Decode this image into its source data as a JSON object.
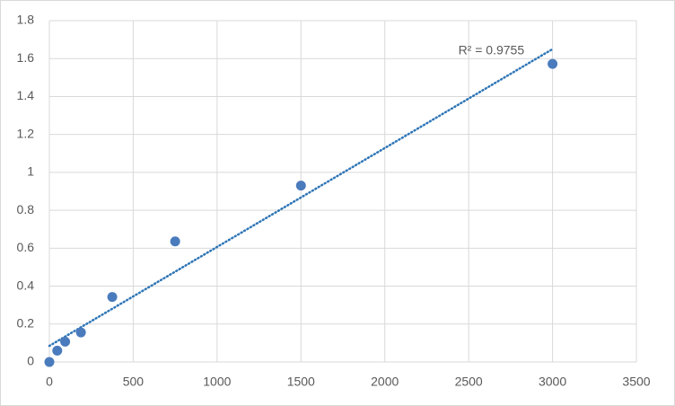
{
  "chart_data": {
    "type": "scatter",
    "series": [
      {
        "color": "#4a7bbd",
        "x": [
          0,
          47,
          94,
          188,
          375,
          750,
          1500,
          3000
        ],
        "values": [
          0,
          0.06,
          0.107,
          0.156,
          0.343,
          0.636,
          0.93,
          1.572
        ]
      }
    ],
    "trendline": {
      "x": [
        0,
        3000
      ],
      "values": [
        0.085,
        1.65
      ],
      "color": "#2e75b6",
      "label": "R² = 0.9755"
    },
    "xlim": [
      0,
      3500
    ],
    "xticks": [
      0,
      500,
      1000,
      1500,
      2000,
      2500,
      3000,
      3500
    ],
    "ylim": [
      0,
      1.8
    ],
    "yticks": [
      0,
      0.2,
      0.4,
      0.6,
      0.8,
      1,
      1.2,
      1.4,
      1.6,
      1.8
    ],
    "grid": true
  }
}
